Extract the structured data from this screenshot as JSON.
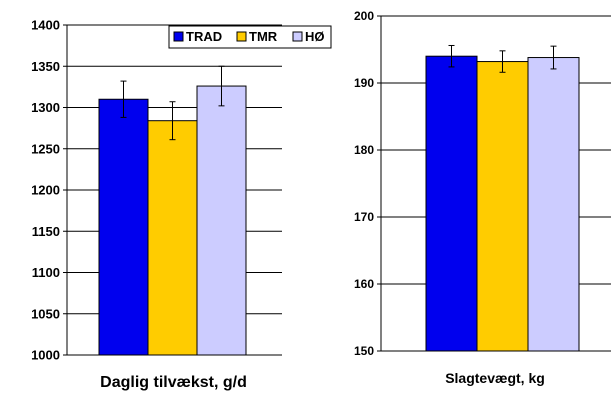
{
  "chart_data": [
    {
      "type": "bar",
      "title": "",
      "xlabel": "Daglig tilvækst, g/d",
      "ylabel": "",
      "ylim": [
        1000,
        1400
      ],
      "yticks": [
        1000,
        1050,
        1100,
        1150,
        1200,
        1250,
        1300,
        1350,
        1400
      ],
      "grid": true,
      "legend_position": "top-right",
      "series": [
        {
          "name": "TRAD",
          "value": 1310,
          "error": 22,
          "color": "#0000ee"
        },
        {
          "name": "TMR",
          "value": 1284,
          "error": 23,
          "color": "#ffcc00"
        },
        {
          "name": "HØ",
          "value": 1326,
          "error": 24,
          "color": "#ccccff"
        }
      ]
    },
    {
      "type": "bar",
      "title": "",
      "xlabel": "Slagtevægt, kg",
      "ylabel": "",
      "ylim": [
        150,
        200
      ],
      "yticks": [
        150,
        160,
        170,
        180,
        190,
        200
      ],
      "grid": true,
      "series": [
        {
          "name": "TRAD",
          "value": 194.0,
          "error": 1.6,
          "color": "#0000ee"
        },
        {
          "name": "TMR",
          "value": 193.2,
          "error": 1.6,
          "color": "#ffcc00"
        },
        {
          "name": "HØ",
          "value": 193.8,
          "error": 1.7,
          "color": "#ccccff"
        }
      ]
    }
  ]
}
